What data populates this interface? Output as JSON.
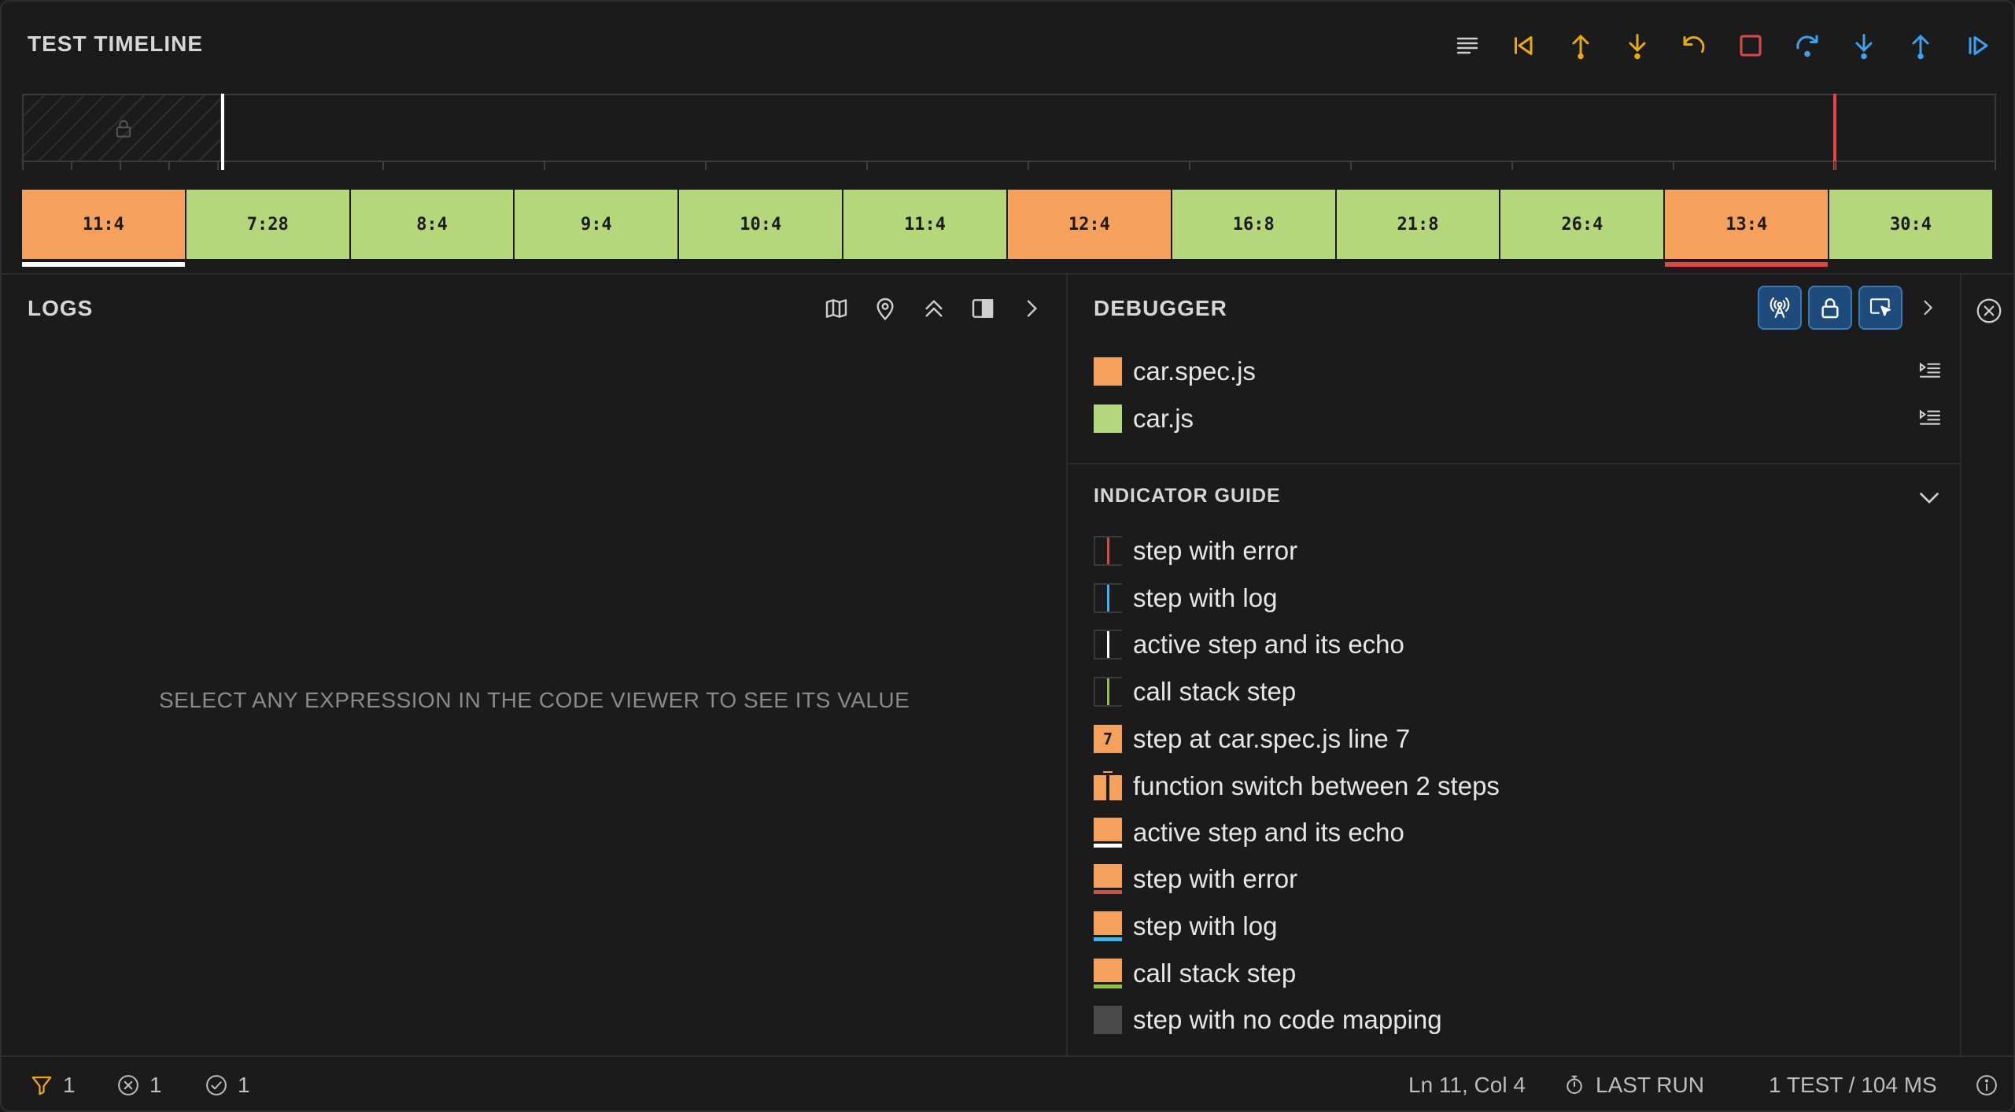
{
  "header": {
    "title": "TEST TIMELINE",
    "toolbar": [
      {
        "icon": "list-icon",
        "color": "#cfcfcf"
      },
      {
        "icon": "step-back-icon",
        "color": "#e8a915"
      },
      {
        "icon": "step-out-up-icon",
        "color": "#e8a915"
      },
      {
        "icon": "step-into-down-icon",
        "color": "#e8a915"
      },
      {
        "icon": "undo-icon",
        "color": "#e8a915"
      },
      {
        "icon": "stop-icon",
        "color": "#e04848"
      },
      {
        "icon": "redo-icon",
        "color": "#3fa0f0"
      },
      {
        "icon": "step-into-icon",
        "color": "#3fa0f0"
      },
      {
        "icon": "step-out-icon",
        "color": "#3fa0f0"
      },
      {
        "icon": "continue-icon",
        "color": "#3fa0f0"
      }
    ]
  },
  "timeline": {
    "steps": [
      {
        "label": "11:4",
        "kind": "orange",
        "marker": "active"
      },
      {
        "label": "7:28",
        "kind": "green"
      },
      {
        "label": "8:4",
        "kind": "green"
      },
      {
        "label": "9:4",
        "kind": "green"
      },
      {
        "label": "10:4",
        "kind": "green"
      },
      {
        "label": "11:4",
        "kind": "green"
      },
      {
        "label": "12:4",
        "kind": "orange"
      },
      {
        "label": "16:8",
        "kind": "green"
      },
      {
        "label": "21:8",
        "kind": "green"
      },
      {
        "label": "26:4",
        "kind": "green"
      },
      {
        "label": "13:4",
        "kind": "orange",
        "marker": "error"
      },
      {
        "label": "30:4",
        "kind": "green"
      }
    ]
  },
  "logs": {
    "title": "LOGS",
    "empty_message": "SELECT ANY EXPRESSION IN THE CODE VIEWER TO SEE ITS VALUE",
    "tools": [
      "map-icon",
      "pin-icon",
      "chevrons-up-icon",
      "split-panel-icon",
      "chevron-right-icon"
    ]
  },
  "debugger": {
    "title": "DEBUGGER",
    "tools": [
      "broadcast-icon",
      "lock-icon",
      "select-cursor-icon"
    ],
    "files": [
      {
        "name": "car.spec.js",
        "color": "#f5a05c"
      },
      {
        "name": "car.js",
        "color": "#b5d77c"
      }
    ],
    "guide_title": "INDICATOR GUIDE",
    "guide": [
      {
        "label": "step with error",
        "type": "line",
        "color": "#e04848"
      },
      {
        "label": "step with log",
        "type": "line",
        "color": "#3fb6f0"
      },
      {
        "label": "active step and its echo",
        "type": "line",
        "color": "#ffffff"
      },
      {
        "label": "call stack step",
        "type": "line",
        "color": "#8fc43a"
      },
      {
        "label": "step at car.spec.js line 7",
        "type": "number",
        "value": "7"
      },
      {
        "label": "function switch between 2 steps",
        "type": "switch"
      },
      {
        "label": "active step and its echo",
        "type": "under",
        "color": "#ffffff"
      },
      {
        "label": "step with error",
        "type": "under",
        "color": "#e04848"
      },
      {
        "label": "step with log",
        "type": "under",
        "color": "#3fb6f0"
      },
      {
        "label": "call stack step",
        "type": "under",
        "color": "#8fc43a"
      },
      {
        "label": "step with no code mapping",
        "type": "gray"
      }
    ]
  },
  "status": {
    "filter_count": "1",
    "failed_count": "1",
    "passed_count": "1",
    "cursor_pos": "Ln 11, Col 4",
    "last_run": "LAST RUN",
    "summary": "1 TEST / 104 MS"
  }
}
